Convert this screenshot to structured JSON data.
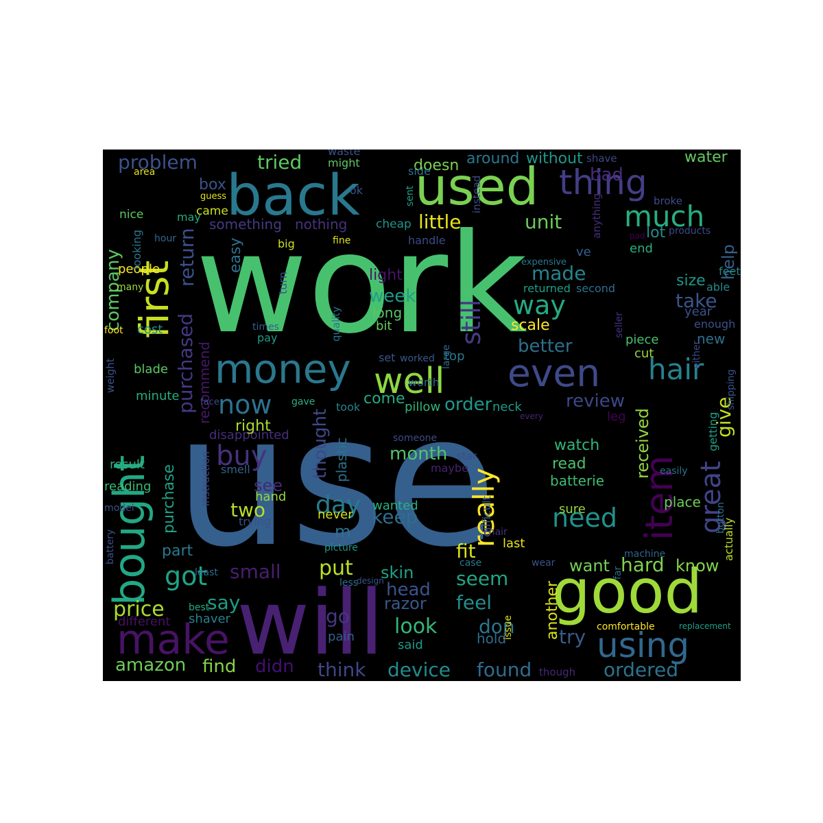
{
  "words": [
    {
      "text": "work",
      "color": "#48c16e"
    },
    {
      "text": "use",
      "color": "#355f8d"
    },
    {
      "text": "will",
      "color": "#482173"
    },
    {
      "text": "good",
      "color": "#a0da39"
    },
    {
      "text": "back",
      "color": "#29798e"
    },
    {
      "text": "used",
      "color": "#7ad151"
    },
    {
      "text": "bought",
      "color": "#22a884"
    },
    {
      "text": "make",
      "color": "#471365"
    },
    {
      "text": "money",
      "color": "#2a788e"
    },
    {
      "text": "first",
      "color": "#c8e020"
    },
    {
      "text": "even",
      "color": "#3e4a89"
    },
    {
      "text": "well",
      "color": "#8fd744"
    },
    {
      "text": "thing",
      "color": "#433e85"
    },
    {
      "text": "item",
      "color": "#440154"
    },
    {
      "text": "using",
      "color": "#31688e"
    },
    {
      "text": "much",
      "color": "#28ae80"
    },
    {
      "text": "really",
      "color": "#fde725"
    },
    {
      "text": "great",
      "color": "#414487"
    },
    {
      "text": "hair",
      "color": "#26828e"
    },
    {
      "text": "still",
      "color": "#443983"
    },
    {
      "text": "got",
      "color": "#20a386"
    },
    {
      "text": "now",
      "color": "#2c728e"
    },
    {
      "text": "day",
      "color": "#287c8e"
    },
    {
      "text": "way",
      "color": "#24aa83"
    },
    {
      "text": "buy",
      "color": "#46327e"
    },
    {
      "text": "need",
      "color": "#21918c"
    },
    {
      "text": "price",
      "color": "#addc30"
    },
    {
      "text": "problem",
      "color": "#3b528b"
    },
    {
      "text": "tried",
      "color": "#5ec962"
    },
    {
      "text": "return",
      "color": "#3b518b"
    },
    {
      "text": "purchased",
      "color": "#453882"
    },
    {
      "text": "company",
      "color": "#5cc863"
    },
    {
      "text": "little",
      "color": "#e7e419"
    },
    {
      "text": "unit",
      "color": "#6ccd5a"
    },
    {
      "text": "made",
      "color": "#25858e"
    },
    {
      "text": "week",
      "color": "#1f9e89"
    },
    {
      "text": "better",
      "color": "#2d708e"
    },
    {
      "text": "take",
      "color": "#39568c"
    },
    {
      "text": "review",
      "color": "#3f4788"
    },
    {
      "text": "order",
      "color": "#1f988b"
    },
    {
      "text": "month",
      "color": "#52c569"
    },
    {
      "text": "two",
      "color": "#b5de2b"
    },
    {
      "text": "keep",
      "color": "#2e6e8e"
    },
    {
      "text": "put",
      "color": "#bddf26"
    },
    {
      "text": "small",
      "color": "#481f70"
    },
    {
      "text": "say",
      "color": "#1e9c89"
    },
    {
      "text": "fit",
      "color": "#d8e219"
    },
    {
      "text": "seem",
      "color": "#21a685"
    },
    {
      "text": "look",
      "color": "#35b779"
    },
    {
      "text": "feel",
      "color": "#228c8d"
    },
    {
      "text": "head",
      "color": "#3a548c"
    },
    {
      "text": "don",
      "color": "#2a768e"
    },
    {
      "text": "hard",
      "color": "#7fd34e"
    },
    {
      "text": "know",
      "color": "#84d44b"
    },
    {
      "text": "want",
      "color": "#73d056"
    },
    {
      "text": "try",
      "color": "#365d8d"
    },
    {
      "text": "amazon",
      "color": "#6ece58"
    },
    {
      "text": "find",
      "color": "#86d549"
    },
    {
      "text": "didn",
      "color": "#440f76"
    },
    {
      "text": "think",
      "color": "#404688"
    },
    {
      "text": "device",
      "color": "#228b8d"
    },
    {
      "text": "found",
      "color": "#2f6c8e"
    },
    {
      "text": "ordered",
      "color": "#2b748e"
    },
    {
      "text": "give",
      "color": "#c0df25"
    },
    {
      "text": "received",
      "color": "#93d741"
    },
    {
      "text": "help",
      "color": "#34618d"
    },
    {
      "text": "size",
      "color": "#1f958b"
    },
    {
      "text": "lot",
      "color": "#228d8d"
    },
    {
      "text": "bad",
      "color": "#472c7a"
    },
    {
      "text": "water",
      "color": "#65cb5e"
    },
    {
      "text": "box",
      "color": "#3a538b"
    },
    {
      "text": "scale",
      "color": "#fde725"
    },
    {
      "text": "recommend",
      "color": "#48186a"
    },
    {
      "text": "disappointed",
      "color": "#472e7c"
    },
    {
      "text": "easy",
      "color": "#2c718e"
    },
    {
      "text": "light",
      "color": "#481467"
    },
    {
      "text": "long",
      "color": "#56c667"
    },
    {
      "text": "bit",
      "color": "#67cc5c"
    },
    {
      "text": "thought",
      "color": "#3f4889"
    },
    {
      "text": "plastic",
      "color": "#2d718e"
    },
    {
      "text": "right",
      "color": "#aadc32"
    },
    {
      "text": "see",
      "color": "#482878"
    },
    {
      "text": "purchase",
      "color": "#1fa088"
    },
    {
      "text": "part",
      "color": "#297a8e"
    },
    {
      "text": "go",
      "color": "#453781"
    },
    {
      "text": "razor",
      "color": "#38588c"
    },
    {
      "text": "skin",
      "color": "#1fa287"
    },
    {
      "text": "come",
      "color": "#25ab82"
    },
    {
      "text": "another",
      "color": "#dde318"
    },
    {
      "text": "watch",
      "color": "#31b57b"
    },
    {
      "text": "read",
      "color": "#4cc26c"
    },
    {
      "text": "batterie",
      "color": "#3fbc73"
    },
    {
      "text": "something",
      "color": "#443a83"
    },
    {
      "text": "nothing",
      "color": "#46337f"
    },
    {
      "text": "doesn",
      "color": "#7cd250"
    },
    {
      "text": "around",
      "color": "#2a778e"
    },
    {
      "text": "without",
      "color": "#1f978b"
    },
    {
      "text": "people",
      "color": "#fde725"
    },
    {
      "text": "cost",
      "color": "#21918c"
    },
    {
      "text": "blade",
      "color": "#5ac864"
    },
    {
      "text": "minute",
      "color": "#26ad81"
    },
    {
      "text": "result",
      "color": "#2db27d"
    },
    {
      "text": "reading",
      "color": "#3bbb75"
    },
    {
      "text": "shaver",
      "color": "#277f8e"
    },
    {
      "text": "different",
      "color": "#471063"
    },
    {
      "text": "pain",
      "color": "#355e8d"
    },
    {
      "text": "said",
      "color": "#1f9a8a"
    },
    {
      "text": "hold",
      "color": "#2e6d8e"
    },
    {
      "text": "wanted",
      "color": "#2ab07f"
    },
    {
      "text": "never",
      "color": "#d2e21b"
    },
    {
      "text": "hand",
      "color": "#9bd93c"
    },
    {
      "text": "trying",
      "color": "#3b528b"
    },
    {
      "text": "smell",
      "color": "#33638d"
    },
    {
      "text": "instruction",
      "color": "#3e4989"
    },
    {
      "text": "maybe",
      "color": "#482374"
    },
    {
      "text": "star",
      "color": "#3e4c8a"
    },
    {
      "text": "difficult",
      "color": "#355e8d"
    },
    {
      "text": "last",
      "color": "#e5e419"
    },
    {
      "text": "sure",
      "color": "#98d83e"
    },
    {
      "text": "place",
      "color": "#6ccd5a"
    },
    {
      "text": "actually",
      "color": "#bade28"
    },
    {
      "text": "button",
      "color": "#2e6f8e"
    },
    {
      "text": "getting",
      "color": "#1fa188"
    },
    {
      "text": "leg",
      "color": "#440256"
    },
    {
      "text": "neck",
      "color": "#1e9b8a"
    },
    {
      "text": "took",
      "color": "#26818e"
    },
    {
      "text": "pillow",
      "color": "#31b57b"
    },
    {
      "text": "worth",
      "color": "#2f6b8e"
    },
    {
      "text": "set",
      "color": "#39558c"
    },
    {
      "text": "worked",
      "color": "#38588c"
    },
    {
      "text": "top",
      "color": "#2a788e"
    },
    {
      "text": "piece",
      "color": "#4ac16d"
    },
    {
      "text": "cut",
      "color": "#9dd93b"
    },
    {
      "text": "new",
      "color": "#2d708e"
    },
    {
      "text": "year",
      "color": "#3b528b"
    },
    {
      "text": "enough",
      "color": "#3c508b"
    },
    {
      "text": "able",
      "color": "#238a8d"
    },
    {
      "text": "feet",
      "color": "#23898e"
    },
    {
      "text": "end",
      "color": "#2ab07f"
    },
    {
      "text": "ve",
      "color": "#33628d"
    },
    {
      "text": "second",
      "color": "#2e6e8e"
    },
    {
      "text": "returned",
      "color": "#1f9e89"
    },
    {
      "text": "expensive",
      "color": "#2a768e"
    },
    {
      "text": "handle",
      "color": "#3e4a89"
    },
    {
      "text": "fine",
      "color": "#e2e418"
    },
    {
      "text": "big",
      "color": "#cde11d"
    },
    {
      "text": "cheap",
      "color": "#1f968b"
    },
    {
      "text": "came",
      "color": "#cae11f"
    },
    {
      "text": "guess",
      "color": "#e5e419"
    },
    {
      "text": "ok",
      "color": "#39558c"
    },
    {
      "text": "sent",
      "color": "#1f9f88"
    },
    {
      "text": "instead",
      "color": "#3d4e8a"
    },
    {
      "text": "side",
      "color": "#2c738e"
    },
    {
      "text": "might",
      "color": "#5ec962"
    },
    {
      "text": "waste",
      "color": "#3b528b"
    },
    {
      "text": "shave",
      "color": "#3f4889"
    },
    {
      "text": "broke",
      "color": "#3e4c8a"
    },
    {
      "text": "anything",
      "color": "#46307e"
    },
    {
      "text": "products",
      "color": "#3e4989"
    },
    {
      "text": "pad",
      "color": "#440154"
    },
    {
      "text": "may",
      "color": "#25ac82"
    },
    {
      "text": "nice",
      "color": "#5ec962"
    },
    {
      "text": "area",
      "color": "#e5e419"
    },
    {
      "text": "looking",
      "color": "#2b758e"
    },
    {
      "text": "hour",
      "color": "#31688e"
    },
    {
      "text": "many",
      "color": "#a2da37"
    },
    {
      "text": "foot",
      "color": "#fde725"
    },
    {
      "text": "times",
      "color": "#34618d"
    },
    {
      "text": "pay",
      "color": "#1f9e89"
    },
    {
      "text": "quality",
      "color": "#2b758e"
    },
    {
      "text": "turn",
      "color": "#3c4f8a"
    },
    {
      "text": "weight",
      "color": "#3b528b"
    },
    {
      "text": "face",
      "color": "#3e4c8a"
    },
    {
      "text": "gave",
      "color": "#2ab07f"
    },
    {
      "text": "seller",
      "color": "#46327e"
    },
    {
      "text": "large",
      "color": "#2e6e8e"
    },
    {
      "text": "either",
      "color": "#3e4a89"
    },
    {
      "text": "shipping",
      "color": "#3b528b"
    },
    {
      "text": "every",
      "color": "#482575"
    },
    {
      "text": "someone",
      "color": "#3e4a89"
    },
    {
      "text": "easily",
      "color": "#2c718e"
    },
    {
      "text": "model",
      "color": "#3b528b"
    },
    {
      "text": "battery",
      "color": "#3b528b"
    },
    {
      "text": "picture",
      "color": "#1f9a8a"
    },
    {
      "text": "least",
      "color": "#2e6d8e"
    },
    {
      "text": "best",
      "color": "#25ac82"
    },
    {
      "text": "less",
      "color": "#2c728e"
    },
    {
      "text": "design",
      "color": "#3a548c"
    },
    {
      "text": "case",
      "color": "#29798e"
    },
    {
      "text": "chair",
      "color": "#46337f"
    },
    {
      "text": "wear",
      "color": "#3b528b"
    },
    {
      "text": "far",
      "color": "#2c718e"
    },
    {
      "text": "machine",
      "color": "#33638d"
    },
    {
      "text": "issue",
      "color": "#e5e419"
    },
    {
      "text": "comfortable",
      "color": "#fde725"
    },
    {
      "text": "replacement",
      "color": "#1fa088"
    },
    {
      "text": "though",
      "color": "#482878"
    },
    {
      "text": "m",
      "color": "#2c728e"
    }
  ]
}
